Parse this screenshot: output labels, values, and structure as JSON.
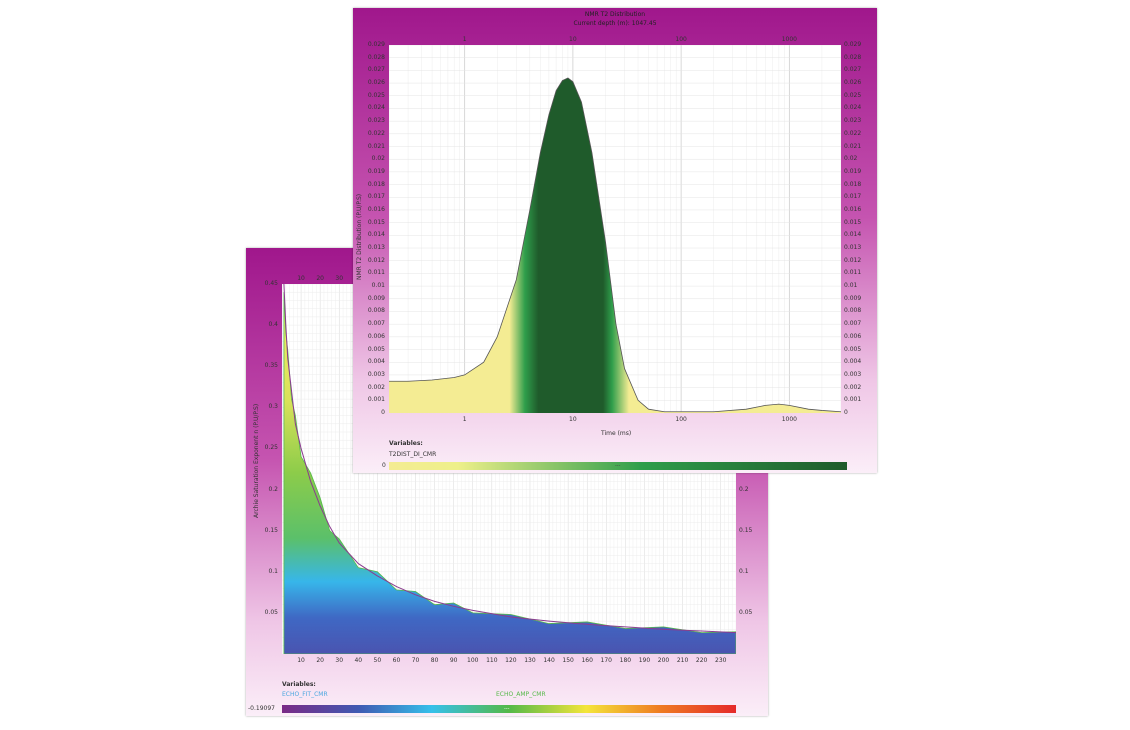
{
  "chart_data": [
    {
      "type": "area",
      "title": "NMR T2 Distribution",
      "subtitle": "Current depth (m): 1047.45",
      "xlabel": "Time (ms)",
      "ylabel": "NMR T2 Distribution (P.U/P.S)",
      "x_scale": "log",
      "xlim": [
        0.2,
        3000
      ],
      "x_ticks": [
        "1",
        "10",
        "100",
        "1000"
      ],
      "ylim": [
        0,
        0.029
      ],
      "y_ticks": [
        "0",
        "0.001",
        "0.002",
        "0.003",
        "0.004",
        "0.005",
        "0.006",
        "0.007",
        "0.008",
        "0.009",
        "0.01",
        "0.011",
        "0.012",
        "0.013",
        "0.014",
        "0.015",
        "0.016",
        "0.017",
        "0.018",
        "0.019",
        "0.02",
        "0.021",
        "0.022",
        "0.023",
        "0.024",
        "0.025",
        "0.026",
        "0.027",
        "0.028",
        "0.029"
      ],
      "series": [
        {
          "x": [
            0.2,
            0.3,
            0.5,
            0.8,
            1,
            1.5,
            2,
            3,
            4,
            5,
            6,
            7,
            8,
            9,
            10,
            12,
            15,
            20,
            25,
            30,
            40,
            50,
            70,
            100,
            200,
            400,
            600,
            800,
            1000,
            1500,
            2000,
            3000
          ],
          "y": [
            0.0025,
            0.0025,
            0.0026,
            0.0028,
            0.003,
            0.004,
            0.006,
            0.0105,
            0.016,
            0.0205,
            0.0235,
            0.0254,
            0.0262,
            0.0264,
            0.0261,
            0.0245,
            0.0205,
            0.0135,
            0.007,
            0.0035,
            0.001,
            0.0003,
            0.0001,
            0.0001,
            0.0001,
            0.0003,
            0.0006,
            0.0007,
            0.0006,
            0.0003,
            0.0002,
            0.0001
          ]
        }
      ],
      "legend_title": "Variables:",
      "variable": "T2DIST_DI_CMR",
      "colorbar_min": "0",
      "colorbar_mid": "---",
      "colors": [
        "#f4ec93",
        "#2f9e4b",
        "#1f5b2b"
      ]
    },
    {
      "type": "area",
      "ylabel": "Archie Saturation Exponent n (P.U/P.S)",
      "xlim": [
        0,
        238
      ],
      "x_ticks": [
        "10",
        "20",
        "30",
        "40",
        "50",
        "60",
        "70",
        "80",
        "90",
        "100",
        "110",
        "120",
        "130",
        "140",
        "150",
        "160",
        "170",
        "180",
        "190",
        "200",
        "210",
        "220",
        "230"
      ],
      "top_ticks": [
        "10",
        "20",
        "30"
      ],
      "ylim": [
        0,
        0.45
      ],
      "y_ticks": [
        "0.05",
        "0.1",
        "0.15",
        "0.2",
        "0.25",
        "0.3",
        "0.35",
        "0.4",
        "0.45"
      ],
      "right_ticks": [
        "0.05",
        "0.1",
        "0.15",
        "0.2"
      ],
      "series": [
        {
          "name": "ECHO_FIT_CMR",
          "x": [
            1,
            2,
            3,
            5,
            7,
            10,
            15,
            20,
            25,
            30,
            40,
            50,
            60,
            70,
            80,
            90,
            100,
            120,
            140,
            160,
            180,
            200,
            220,
            238
          ],
          "y": [
            0.45,
            0.4,
            0.36,
            0.32,
            0.28,
            0.25,
            0.21,
            0.18,
            0.155,
            0.135,
            0.11,
            0.095,
            0.082,
            0.072,
            0.064,
            0.058,
            0.053,
            0.045,
            0.04,
            0.036,
            0.033,
            0.03,
            0.028,
            0.026
          ]
        },
        {
          "name": "ECHO_AMP_CMR",
          "x": [
            1,
            2,
            3,
            5,
            7,
            10,
            15,
            20,
            25,
            30,
            40,
            50,
            60,
            70,
            80,
            90,
            100,
            120,
            140,
            160,
            180,
            200,
            220,
            238
          ],
          "y": [
            0.44,
            0.39,
            0.37,
            0.31,
            0.29,
            0.24,
            0.22,
            0.19,
            0.15,
            0.14,
            0.105,
            0.1,
            0.078,
            0.076,
            0.06,
            0.062,
            0.05,
            0.048,
            0.037,
            0.039,
            0.031,
            0.033,
            0.026,
            0.027
          ]
        }
      ],
      "legend_title": "Variables:",
      "colorbar_min": "-0.19097",
      "colorbar_mid": "---",
      "colors": [
        "#7a2a86",
        "#3f5bb3",
        "#36c0ea",
        "#54b948",
        "#f4e53a",
        "#ef7d22",
        "#e52a2a"
      ],
      "fit_color": "#4aa7e0",
      "amp_color": "#56b94a"
    }
  ]
}
